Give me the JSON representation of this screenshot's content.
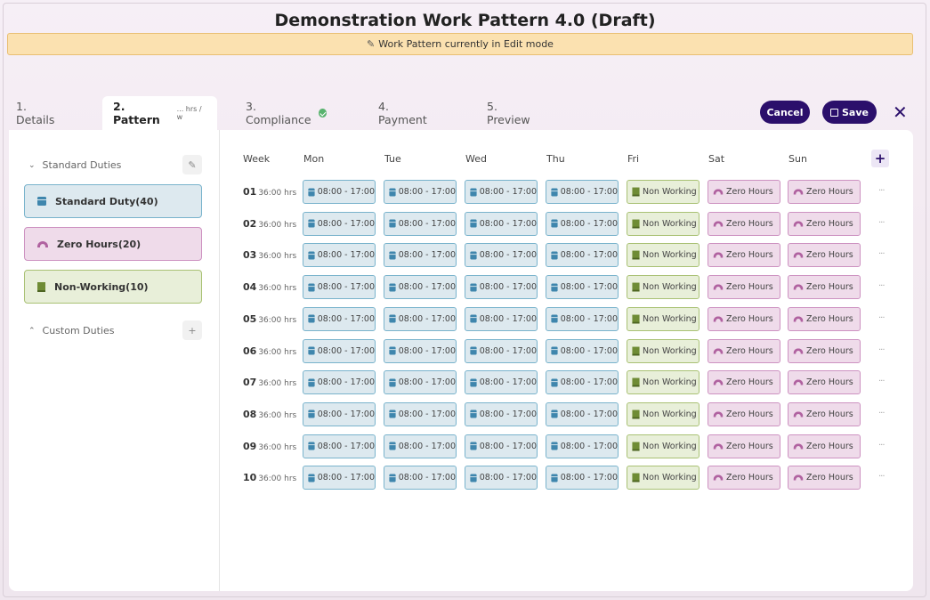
{
  "header": {
    "title": "Demonstration Work Pattern 4.0 (Draft)",
    "banner": "Work Pattern currently in Edit mode"
  },
  "tabs": [
    {
      "label": "1. Details"
    },
    {
      "label": "2. Pattern",
      "sub": "... hrs / w"
    },
    {
      "label": "3. Compliance"
    },
    {
      "label": "4. Payment"
    },
    {
      "label": "5. Preview"
    }
  ],
  "actions": {
    "cancel": "Cancel",
    "save": "Save",
    "close": "✕"
  },
  "sidebar": {
    "standard_title": "Standard Duties",
    "custom_title": "Custom Duties",
    "duties": [
      {
        "label": "Standard Duty(40)",
        "type": "std"
      },
      {
        "label": "Zero Hours(20)",
        "type": "zero"
      },
      {
        "label": "Non-Working(10)",
        "type": "non"
      }
    ]
  },
  "grid": {
    "headers": [
      "Week",
      "Mon",
      "Tue",
      "Wed",
      "Thu",
      "Fri",
      "Sat",
      "Sun"
    ],
    "day_types": [
      "std",
      "std",
      "std",
      "std",
      "non",
      "zero",
      "zero"
    ],
    "labels": {
      "std": "08:00 - 17:00",
      "non": "Non Working",
      "zero": "Zero Hours"
    },
    "weeks": [
      {
        "num": "01",
        "hrs": "36:00 hrs"
      },
      {
        "num": "02",
        "hrs": "36:00 hrs"
      },
      {
        "num": "03",
        "hrs": "36:00 hrs"
      },
      {
        "num": "04",
        "hrs": "36:00 hrs"
      },
      {
        "num": "05",
        "hrs": "36:00 hrs"
      },
      {
        "num": "06",
        "hrs": "36:00 hrs"
      },
      {
        "num": "07",
        "hrs": "36:00 hrs"
      },
      {
        "num": "08",
        "hrs": "36:00 hrs"
      },
      {
        "num": "09",
        "hrs": "36:00 hrs"
      },
      {
        "num": "10",
        "hrs": "36:00 hrs"
      }
    ],
    "row_menu": "···"
  }
}
